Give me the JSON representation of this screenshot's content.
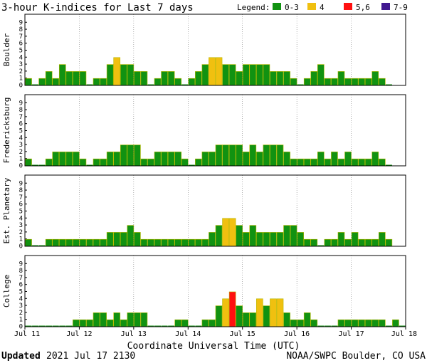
{
  "title": "3-hour K-indices for Last 7 days",
  "legend": {
    "label": "Legend:",
    "items": [
      {
        "label": "0-3",
        "color": "#119211"
      },
      {
        "label": "4",
        "color": "#f0c010"
      },
      {
        "label": "5,6",
        "color": "#ff1010"
      },
      {
        "label": "7-9",
        "color": "#401890"
      }
    ]
  },
  "xlabel": "Coordinate Universal Time (UTC)",
  "footer": {
    "updated_label": "Updated",
    "updated_value": "2021 Jul 17 2130",
    "credit": "NOAA/SWPC Boulder, CO USA"
  },
  "chart_data": {
    "type": "bar",
    "ylim": [
      0,
      9
    ],
    "y_ticks": [
      "0",
      "1",
      "2",
      "3",
      "4",
      "5",
      "6",
      "7",
      "8",
      "9"
    ],
    "x_ticks": [
      "Jul 11",
      "Jul 12",
      "Jul 13",
      "Jul 14",
      "Jul 15",
      "Jul 16",
      "Jul 17",
      "Jul 18"
    ],
    "bars_per_day": 8,
    "panels": [
      {
        "name": "Boulder",
        "values": [
          1,
          0,
          1,
          2,
          1,
          3,
          2,
          2,
          2,
          0,
          1,
          1,
          3,
          4,
          3,
          3,
          2,
          2,
          0,
          1,
          2,
          2,
          1,
          0,
          1,
          2,
          3,
          4,
          4,
          3,
          3,
          2,
          3,
          3,
          3,
          3,
          2,
          2,
          2,
          1,
          0,
          1,
          2,
          3,
          1,
          1,
          2,
          1,
          1,
          1,
          1,
          2,
          1,
          0
        ]
      },
      {
        "name": "Fredericksburg",
        "values": [
          1,
          0,
          0,
          1,
          2,
          2,
          2,
          2,
          1,
          0,
          1,
          1,
          2,
          2,
          3,
          3,
          3,
          1,
          1,
          2,
          2,
          2,
          2,
          1,
          0,
          1,
          2,
          2,
          3,
          3,
          3,
          3,
          2,
          3,
          2,
          3,
          3,
          3,
          2,
          1,
          1,
          1,
          1,
          2,
          1,
          2,
          1,
          2,
          1,
          1,
          1,
          2,
          1,
          0
        ]
      },
      {
        "name": "Est. Planetary",
        "values": [
          1,
          0,
          0,
          1,
          1,
          1,
          1,
          1,
          1,
          1,
          1,
          1,
          2,
          2,
          2,
          3,
          2,
          1,
          1,
          1,
          1,
          1,
          1,
          1,
          1,
          1,
          1,
          2,
          3,
          4,
          4,
          3,
          2,
          3,
          2,
          2,
          2,
          2,
          3,
          3,
          2,
          1,
          1,
          0,
          1,
          1,
          2,
          1,
          2,
          1,
          1,
          1,
          2,
          1
        ]
      },
      {
        "name": "College",
        "values": [
          0,
          0,
          0,
          0,
          0,
          0,
          0,
          1,
          1,
          1,
          2,
          2,
          1,
          2,
          1,
          2,
          2,
          2,
          0,
          0,
          0,
          0,
          1,
          1,
          0,
          0,
          1,
          1,
          3,
          4,
          5,
          3,
          2,
          2,
          4,
          3,
          4,
          4,
          2,
          1,
          1,
          2,
          1,
          0,
          0,
          0,
          1,
          1,
          1,
          1,
          1,
          1,
          1,
          0,
          1,
          0
        ]
      }
    ]
  }
}
